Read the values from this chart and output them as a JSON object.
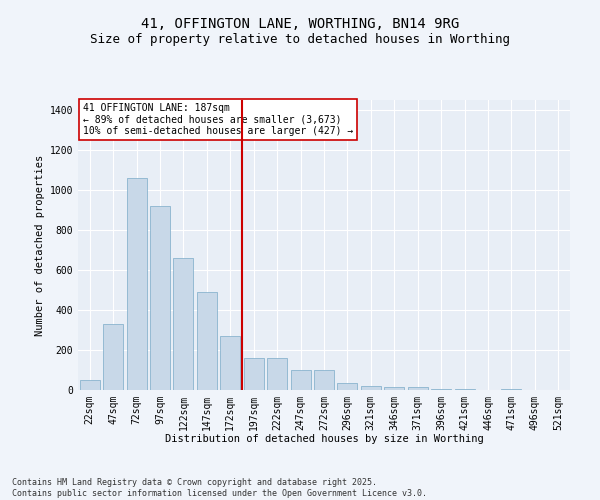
{
  "title": "41, OFFINGTON LANE, WORTHING, BN14 9RG",
  "subtitle": "Size of property relative to detached houses in Worthing",
  "xlabel": "Distribution of detached houses by size in Worthing",
  "ylabel": "Number of detached properties",
  "categories": [
    "22sqm",
    "47sqm",
    "72sqm",
    "97sqm",
    "122sqm",
    "147sqm",
    "172sqm",
    "197sqm",
    "222sqm",
    "247sqm",
    "272sqm",
    "296sqm",
    "321sqm",
    "346sqm",
    "371sqm",
    "396sqm",
    "421sqm",
    "446sqm",
    "471sqm",
    "496sqm",
    "521sqm"
  ],
  "values": [
    50,
    330,
    1060,
    920,
    660,
    490,
    270,
    160,
    160,
    100,
    100,
    35,
    20,
    15,
    15,
    5,
    5,
    0,
    5,
    0,
    0
  ],
  "bar_color": "#c8d8e8",
  "bar_edge_color": "#7aaac8",
  "fig_bg_color": "#f0f4fa",
  "plot_bg_color": "#e8eef6",
  "grid_color": "#ffffff",
  "vline_color": "#cc0000",
  "vline_x_index": 7,
  "annotation_text": "41 OFFINGTON LANE: 187sqm\n← 89% of detached houses are smaller (3,673)\n10% of semi-detached houses are larger (427) →",
  "annotation_box_edgecolor": "#cc0000",
  "ylim": [
    0,
    1450
  ],
  "yticks": [
    0,
    200,
    400,
    600,
    800,
    1000,
    1200,
    1400
  ],
  "footer": "Contains HM Land Registry data © Crown copyright and database right 2025.\nContains public sector information licensed under the Open Government Licence v3.0.",
  "title_fontsize": 10,
  "subtitle_fontsize": 9,
  "axis_label_fontsize": 7.5,
  "tick_fontsize": 7,
  "annotation_fontsize": 7,
  "footer_fontsize": 6
}
